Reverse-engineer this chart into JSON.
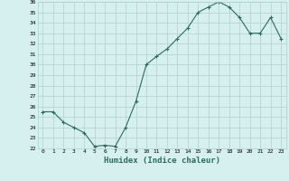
{
  "x": [
    0,
    1,
    2,
    3,
    4,
    5,
    6,
    7,
    8,
    9,
    10,
    11,
    12,
    13,
    14,
    15,
    16,
    17,
    18,
    19,
    20,
    21,
    22,
    23
  ],
  "y": [
    25.5,
    25.5,
    24.5,
    24.0,
    23.5,
    22.2,
    22.3,
    22.2,
    24.0,
    26.5,
    30.0,
    30.8,
    31.5,
    32.5,
    33.5,
    35.0,
    35.5,
    36.0,
    35.5,
    34.5,
    33.0,
    33.0,
    34.5,
    32.5
  ],
  "xlabel": "Humidex (Indice chaleur)",
  "ylim": [
    22,
    36
  ],
  "xlim": [
    -0.5,
    23.5
  ],
  "yticks": [
    22,
    23,
    24,
    25,
    26,
    27,
    28,
    29,
    30,
    31,
    32,
    33,
    34,
    35,
    36
  ],
  "xticks": [
    0,
    1,
    2,
    3,
    4,
    5,
    6,
    7,
    8,
    9,
    10,
    11,
    12,
    13,
    14,
    15,
    16,
    17,
    18,
    19,
    20,
    21,
    22,
    23
  ],
  "line_color": "#2e6b5e",
  "marker": "+",
  "bg_color": "#d6f0f0",
  "grid_color": "#b0d0d0",
  "xlabel_color": "#2e6b5e"
}
